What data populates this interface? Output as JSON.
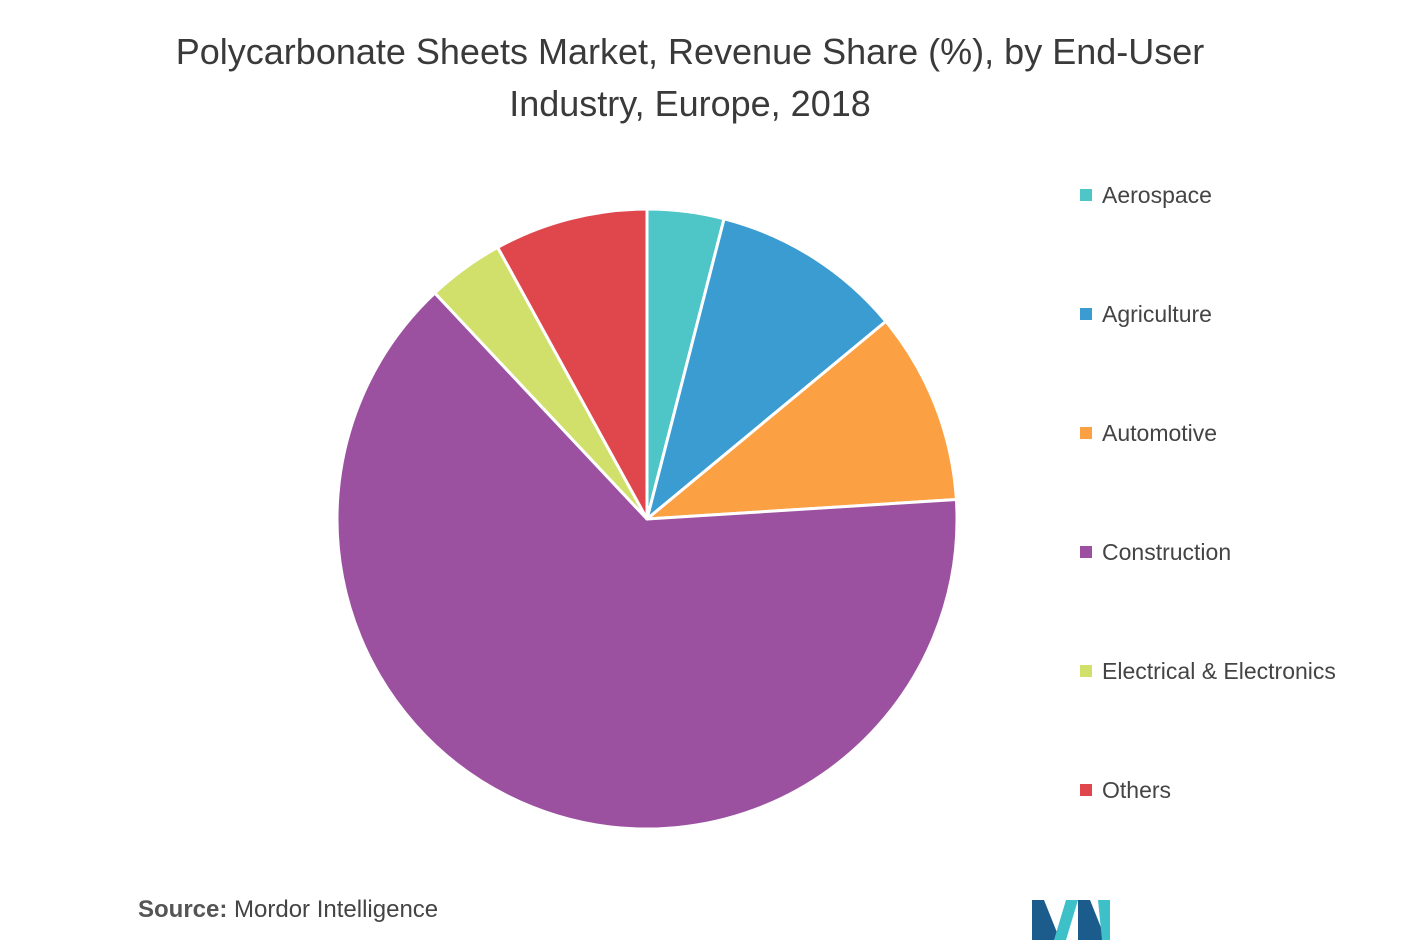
{
  "title_line1": "Polycarbonate Sheets Market, Revenue Share (%), by End-User",
  "title_line2": "Industry, Europe, 2018",
  "source_prefix": "Source:",
  "source_text": "Mordor Intelligence",
  "colors": {
    "aerospace": "#4ec5c7",
    "agriculture": "#3b9cd2",
    "automotive": "#fca044",
    "construction": "#9b51a0",
    "electrical": "#d1e06b",
    "others": "#e0474c",
    "logo_dark": "#1b5c8c",
    "logo_teal": "#3ec0c9"
  },
  "chart_data": {
    "type": "pie",
    "title": "Polycarbonate Sheets Market, Revenue Share (%), by End-User Industry, Europe, 2018",
    "legend_position": "right",
    "categories": [
      "Aerospace",
      "Agriculture",
      "Automotive",
      "Construction",
      "Electrical & Electronics",
      "Others"
    ],
    "values": [
      4,
      10,
      10,
      64,
      4,
      8
    ],
    "colors": [
      "#4ec5c7",
      "#3b9cd2",
      "#fca044",
      "#9b51a0",
      "#d1e06b",
      "#e0474c"
    ]
  }
}
